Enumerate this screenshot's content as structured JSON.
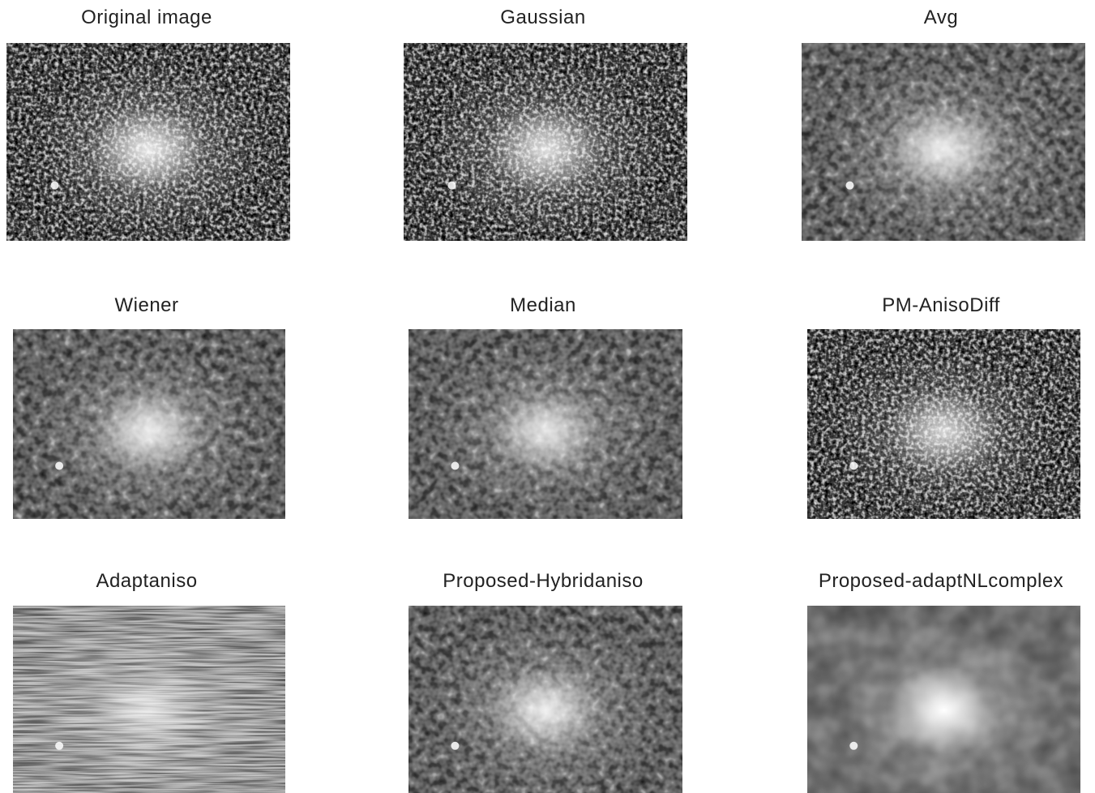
{
  "panels": [
    {
      "title": "Original image"
    },
    {
      "title": "Gaussian"
    },
    {
      "title": "Avg"
    },
    {
      "title": "Wiener"
    },
    {
      "title": "Median"
    },
    {
      "title": "PM-AnisoDiff"
    },
    {
      "title": "Adaptaniso"
    },
    {
      "title": "Proposed-Hybridaniso"
    },
    {
      "title": "Proposed-adaptNLcomplex"
    }
  ]
}
